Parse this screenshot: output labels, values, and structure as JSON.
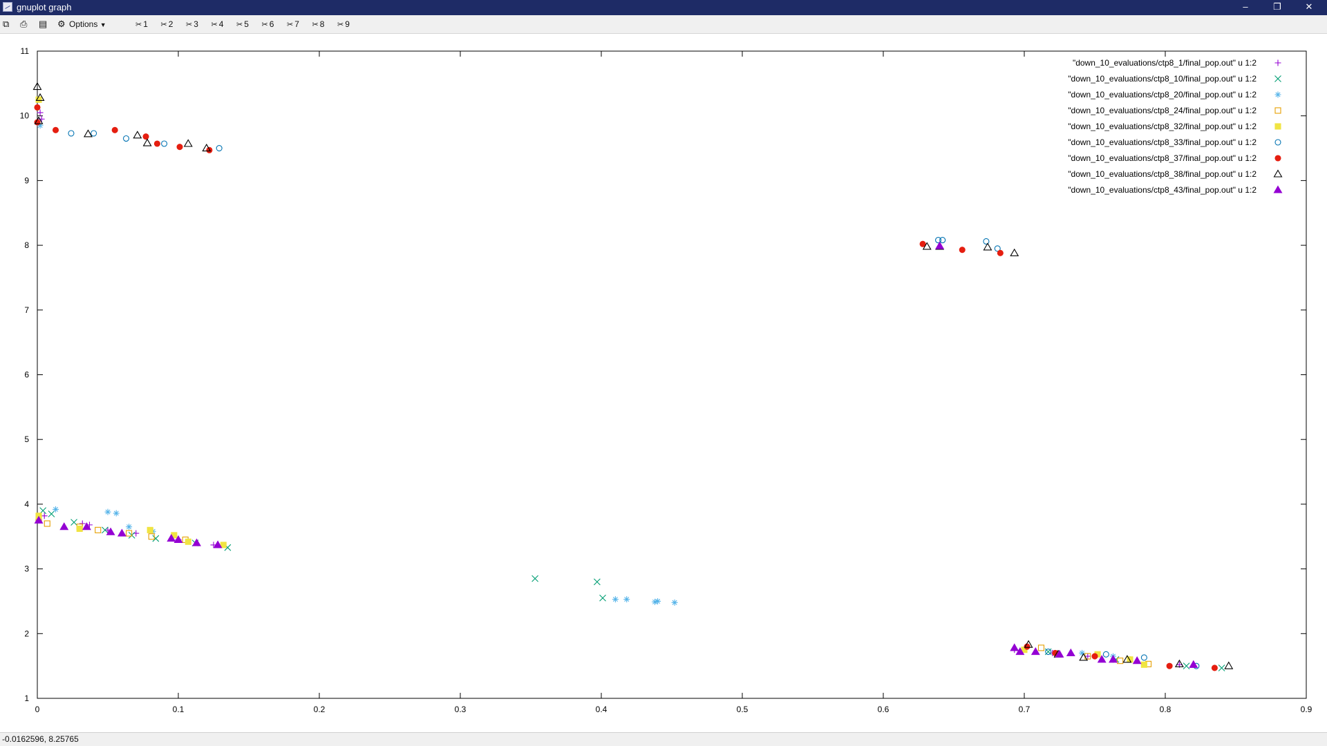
{
  "window": {
    "title": "gnuplot graph",
    "minimize_icon": "minimize-icon",
    "restore_icon": "restore-icon",
    "close_icon": "close-icon"
  },
  "toolbar": {
    "copy_icon": "copy-icon",
    "print_icon": "print-icon",
    "save_icon": "save-icon",
    "options_label": "Options",
    "plot_toggles": [
      "1",
      "2",
      "3",
      "4",
      "5",
      "6",
      "7",
      "8",
      "9"
    ]
  },
  "status": {
    "coords": "-0.0162596,  8.25765"
  },
  "chart_data": {
    "type": "scatter",
    "xlim": [
      0,
      0.9
    ],
    "ylim": [
      1,
      11
    ],
    "xticks": [
      0,
      0.1,
      0.2,
      0.3,
      0.4,
      0.5,
      0.6,
      0.7,
      0.8,
      0.9
    ],
    "yticks": [
      1,
      2,
      3,
      4,
      5,
      6,
      7,
      8,
      9,
      10,
      11
    ],
    "xtick_labels": [
      "0",
      "0.1",
      "0.2",
      "0.3",
      "0.4",
      "0.5",
      "0.6",
      "0.7",
      "0.8",
      "0.9"
    ],
    "ytick_labels": [
      "1",
      "2",
      "3",
      "4",
      "5",
      "6",
      "7",
      "8",
      "9",
      "10",
      "11"
    ],
    "grid": false,
    "legend_position": "top-right",
    "series": [
      {
        "name": "\"down_10_evaluations/ctp8_1/final_pop.out\"  u 1:2",
        "marker": "plus",
        "color": "#9400d3",
        "points": [
          [
            0.002,
            10.05
          ],
          [
            0.003,
            9.95
          ],
          [
            0.005,
            3.82
          ],
          [
            0.032,
            3.7
          ],
          [
            0.037,
            3.68
          ],
          [
            0.05,
            3.6
          ],
          [
            0.07,
            3.55
          ],
          [
            0.1,
            3.45
          ],
          [
            0.125,
            3.37
          ],
          [
            0.693,
            1.75
          ],
          [
            0.72,
            1.7
          ],
          [
            0.745,
            1.65
          ],
          [
            0.775,
            1.6
          ],
          [
            0.81,
            1.52
          ]
        ]
      },
      {
        "name": "\"down_10_evaluations/ctp8_10/final_pop.out\"  u 1:2",
        "marker": "cross",
        "color": "#009e73",
        "points": [
          [
            0.004,
            3.9
          ],
          [
            0.01,
            3.85
          ],
          [
            0.026,
            3.72
          ],
          [
            0.048,
            3.6
          ],
          [
            0.067,
            3.52
          ],
          [
            0.084,
            3.47
          ],
          [
            0.112,
            3.4
          ],
          [
            0.135,
            3.33
          ],
          [
            0.353,
            2.85
          ],
          [
            0.397,
            2.8
          ],
          [
            0.401,
            2.55
          ],
          [
            0.717,
            1.72
          ],
          [
            0.765,
            1.6
          ],
          [
            0.815,
            1.5
          ],
          [
            0.84,
            1.47
          ]
        ]
      },
      {
        "name": "\"down_10_evaluations/ctp8_20/final_pop.out\"  u 1:2",
        "marker": "star",
        "color": "#56b4e9",
        "points": [
          [
            0.002,
            9.85
          ],
          [
            0.013,
            3.92
          ],
          [
            0.05,
            3.88
          ],
          [
            0.056,
            3.86
          ],
          [
            0.065,
            3.65
          ],
          [
            0.082,
            3.58
          ],
          [
            0.41,
            2.53
          ],
          [
            0.418,
            2.53
          ],
          [
            0.438,
            2.49
          ],
          [
            0.44,
            2.5
          ],
          [
            0.452,
            2.48
          ],
          [
            0.741,
            1.7
          ],
          [
            0.763,
            1.65
          ]
        ]
      },
      {
        "name": "\"down_10_evaluations/ctp8_24/final_pop.out\"  u 1:2",
        "marker": "square",
        "color": "#e69f00",
        "points": [
          [
            0.001,
            3.78
          ],
          [
            0.007,
            3.7
          ],
          [
            0.03,
            3.65
          ],
          [
            0.043,
            3.6
          ],
          [
            0.065,
            3.55
          ],
          [
            0.081,
            3.5
          ],
          [
            0.105,
            3.45
          ],
          [
            0.712,
            1.78
          ],
          [
            0.745,
            1.65
          ],
          [
            0.768,
            1.58
          ],
          [
            0.788,
            1.53
          ]
        ]
      },
      {
        "name": "\"down_10_evaluations/ctp8_32/final_pop.out\"  u 1:2",
        "marker": "filled-square",
        "color": "#f0e442",
        "points": [
          [
            0.001,
            10.25
          ],
          [
            0.001,
            3.82
          ],
          [
            0.03,
            3.62
          ],
          [
            0.08,
            3.6
          ],
          [
            0.097,
            3.52
          ],
          [
            0.107,
            3.42
          ],
          [
            0.132,
            3.37
          ],
          [
            0.7,
            1.75
          ],
          [
            0.752,
            1.68
          ],
          [
            0.775,
            1.6
          ],
          [
            0.785,
            1.52
          ]
        ]
      },
      {
        "name": "\"down_10_evaluations/ctp8_33/final_pop.out\"  u 1:2",
        "marker": "circle",
        "color": "#0072b2",
        "points": [
          [
            0.024,
            9.73
          ],
          [
            0.04,
            9.73
          ],
          [
            0.063,
            9.65
          ],
          [
            0.09,
            9.57
          ],
          [
            0.129,
            9.5
          ],
          [
            0.639,
            8.08
          ],
          [
            0.642,
            8.08
          ],
          [
            0.673,
            8.06
          ],
          [
            0.681,
            7.95
          ],
          [
            0.717,
            1.72
          ],
          [
            0.758,
            1.68
          ],
          [
            0.785,
            1.63
          ],
          [
            0.822,
            1.5
          ]
        ]
      },
      {
        "name": "\"down_10_evaluations/ctp8_37/final_pop.out\"  u 1:2",
        "marker": "filled-circle",
        "color": "#e51e10",
        "points": [
          [
            0.0,
            10.13
          ],
          [
            0.0,
            9.9
          ],
          [
            0.013,
            9.78
          ],
          [
            0.055,
            9.78
          ],
          [
            0.077,
            9.68
          ],
          [
            0.085,
            9.57
          ],
          [
            0.101,
            9.52
          ],
          [
            0.122,
            9.47
          ],
          [
            0.628,
            8.02
          ],
          [
            0.656,
            7.93
          ],
          [
            0.683,
            7.88
          ],
          [
            0.702,
            1.8
          ],
          [
            0.722,
            1.7
          ],
          [
            0.75,
            1.65
          ],
          [
            0.803,
            1.5
          ],
          [
            0.835,
            1.47
          ]
        ]
      },
      {
        "name": "\"down_10_evaluations/ctp8_38/final_pop.out\"  u 1:2",
        "marker": "triangle",
        "color": "#000000",
        "points": [
          [
            0.0,
            10.45
          ],
          [
            0.002,
            10.28
          ],
          [
            0.001,
            9.92
          ],
          [
            0.036,
            9.72
          ],
          [
            0.071,
            9.7
          ],
          [
            0.078,
            9.58
          ],
          [
            0.107,
            9.57
          ],
          [
            0.12,
            9.5
          ],
          [
            0.631,
            7.98
          ],
          [
            0.64,
            7.98
          ],
          [
            0.674,
            7.97
          ],
          [
            0.693,
            7.88
          ],
          [
            0.703,
            1.83
          ],
          [
            0.724,
            1.68
          ],
          [
            0.742,
            1.63
          ],
          [
            0.773,
            1.6
          ],
          [
            0.81,
            1.53
          ],
          [
            0.845,
            1.5
          ]
        ]
      },
      {
        "name": "\"down_10_evaluations/ctp8_43/final_pop.out\"  u 1:2",
        "marker": "filled-triangle",
        "color": "#9400d3",
        "points": [
          [
            0.001,
            3.75
          ],
          [
            0.019,
            3.65
          ],
          [
            0.035,
            3.65
          ],
          [
            0.052,
            3.57
          ],
          [
            0.06,
            3.55
          ],
          [
            0.095,
            3.47
          ],
          [
            0.1,
            3.45
          ],
          [
            0.113,
            3.4
          ],
          [
            0.128,
            3.37
          ],
          [
            0.64,
            7.99
          ],
          [
            0.693,
            1.78
          ],
          [
            0.697,
            1.72
          ],
          [
            0.708,
            1.72
          ],
          [
            0.725,
            1.68
          ],
          [
            0.733,
            1.7
          ],
          [
            0.755,
            1.6
          ],
          [
            0.763,
            1.6
          ],
          [
            0.78,
            1.58
          ],
          [
            0.82,
            1.52
          ]
        ]
      }
    ]
  }
}
